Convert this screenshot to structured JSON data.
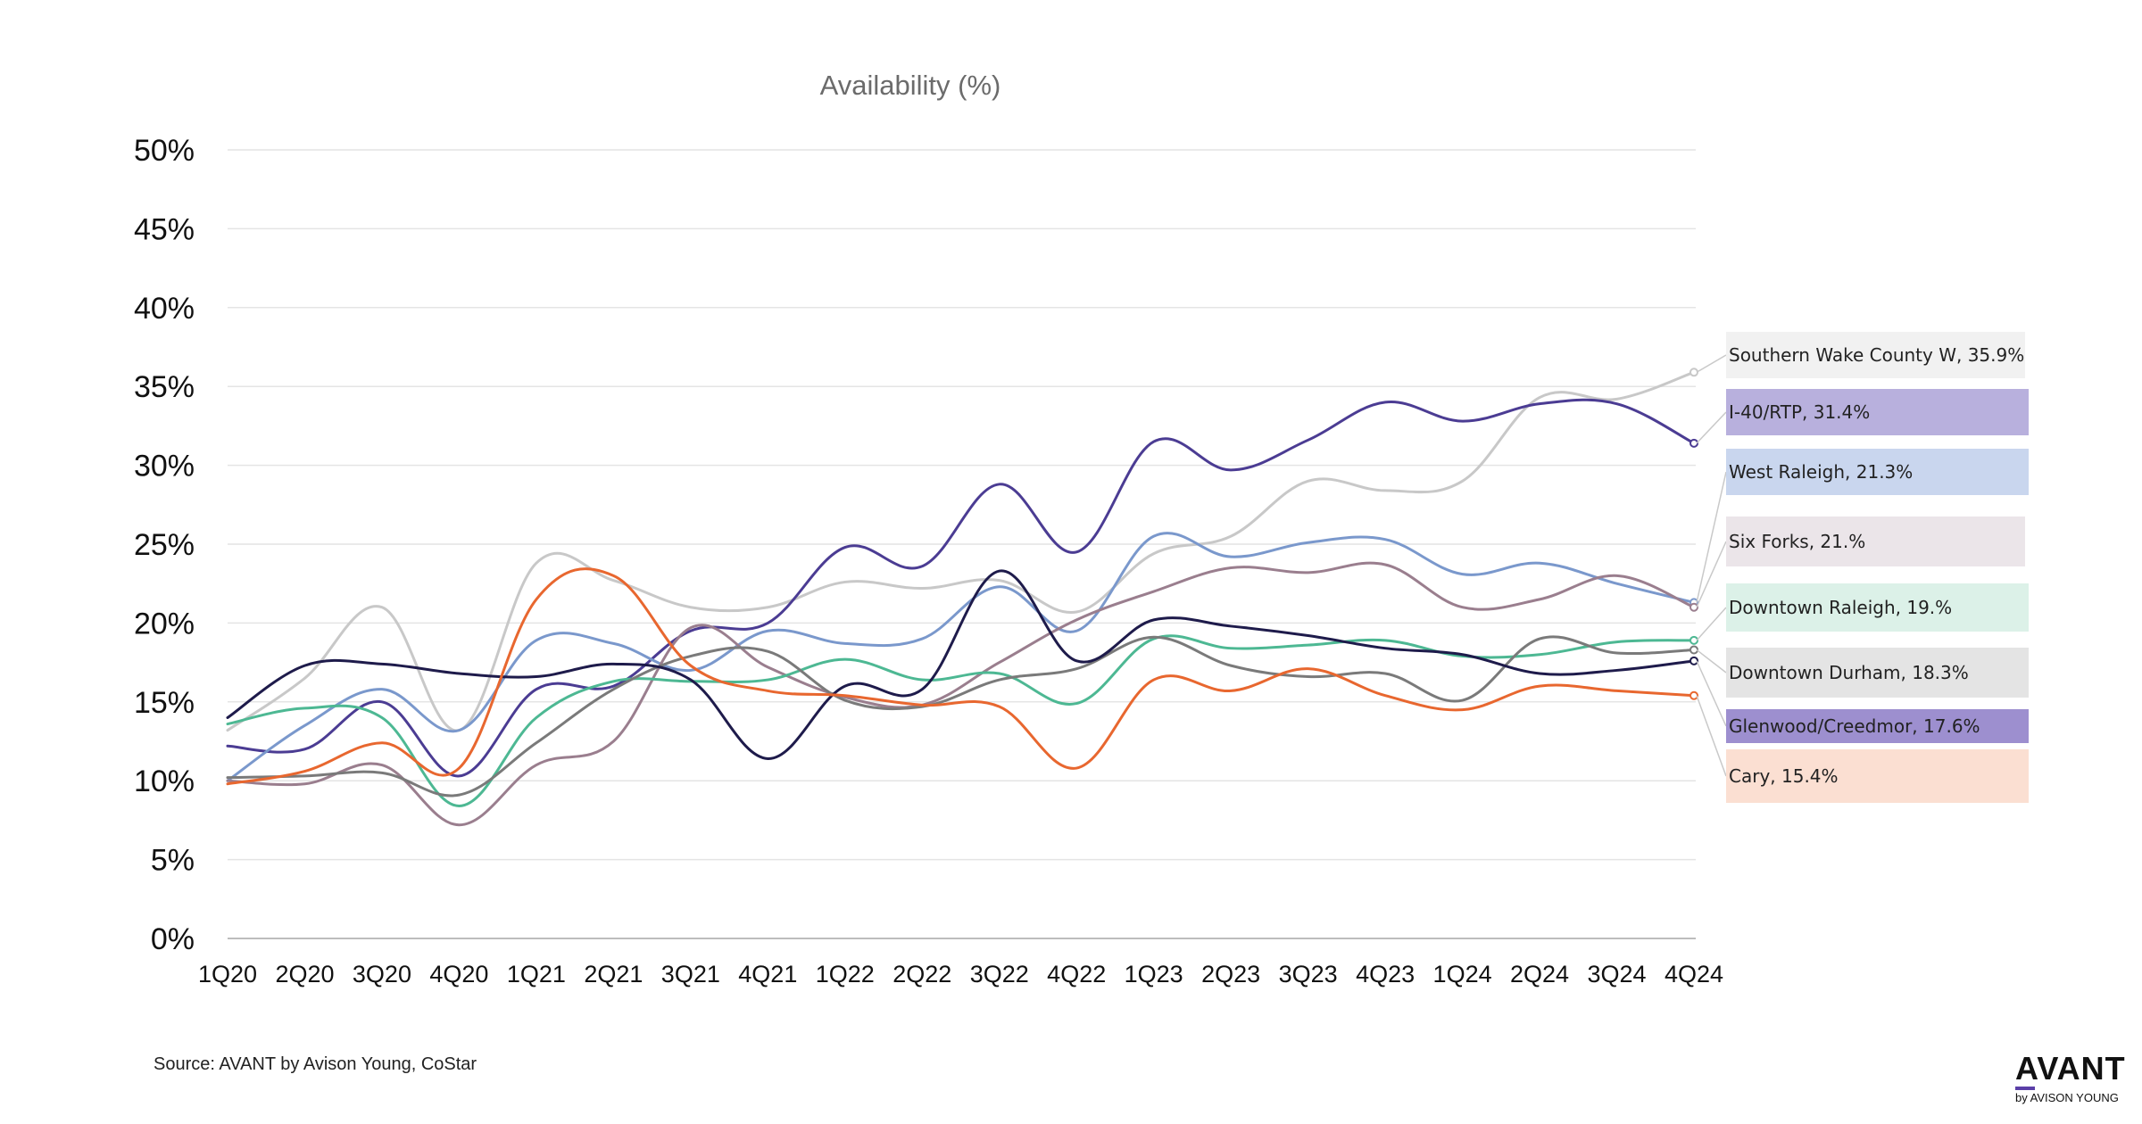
{
  "chart_data": {
    "type": "line",
    "title": "Availability (%)",
    "xlabel": "",
    "ylabel": "",
    "ylim": [
      0,
      50
    ],
    "yticks": [
      "0%",
      "5%",
      "10%",
      "15%",
      "20%",
      "25%",
      "30%",
      "35%",
      "40%",
      "45%",
      "50%"
    ],
    "grid": "horizontal",
    "legend_placement": "right, labels at line ends",
    "categories": [
      "1Q20",
      "2Q20",
      "3Q20",
      "4Q20",
      "1Q21",
      "2Q21",
      "3Q21",
      "4Q21",
      "1Q22",
      "2Q22",
      "3Q22",
      "4Q22",
      "1Q23",
      "2Q23",
      "3Q23",
      "4Q23",
      "1Q24",
      "2Q24",
      "3Q24",
      "4Q24"
    ],
    "series": [
      {
        "name": "Southern Wake County W",
        "label": "Southern Wake County W, 35.9%",
        "color": "#c8c8c8",
        "label_bg": "#f1f1f1",
        "values": [
          13.2,
          16.5,
          21.0,
          13.2,
          23.8,
          22.7,
          21.0,
          21.0,
          22.6,
          22.2,
          22.7,
          20.7,
          24.4,
          25.5,
          29.0,
          28.4,
          29.0,
          34.3,
          34.2,
          35.9
        ]
      },
      {
        "name": "I-40/RTP",
        "label": "I-40/RTP, 31.4%",
        "color": "#4b3c93",
        "label_bg": "#b8b0dd",
        "values": [
          12.2,
          12.0,
          15.0,
          10.3,
          15.8,
          16.0,
          19.5,
          20.0,
          24.8,
          23.6,
          28.8,
          24.5,
          31.5,
          29.7,
          31.6,
          34.0,
          32.8,
          33.9,
          33.9,
          31.4
        ]
      },
      {
        "name": "West Raleigh",
        "label": "West Raleigh, 21.3%",
        "color": "#7a98cc",
        "label_bg": "#c9d6ee",
        "values": [
          10.0,
          13.5,
          15.8,
          13.2,
          18.9,
          18.7,
          17.0,
          19.5,
          18.7,
          19.0,
          22.3,
          19.5,
          25.5,
          24.2,
          25.1,
          25.3,
          23.1,
          23.8,
          22.5,
          21.3
        ]
      },
      {
        "name": "Six Forks",
        "label": "Six Forks, 21.%",
        "color": "#9a7e8e",
        "label_bg": "#ebe5e9",
        "values": [
          10.0,
          9.8,
          11.0,
          7.2,
          11.0,
          12.5,
          19.7,
          17.2,
          15.3,
          14.8,
          17.5,
          20.2,
          22.0,
          23.5,
          23.2,
          23.7,
          21.0,
          21.5,
          23.0,
          21.0
        ]
      },
      {
        "name": "Downtown Raleigh",
        "label": "Downtown Raleigh, 19.%",
        "color": "#4db893",
        "label_bg": "#dcf1e8",
        "values": [
          13.6,
          14.6,
          14.0,
          8.4,
          14.0,
          16.3,
          16.3,
          16.4,
          17.7,
          16.4,
          16.8,
          14.9,
          19.0,
          18.4,
          18.6,
          18.9,
          17.9,
          18.0,
          18.8,
          18.9
        ]
      },
      {
        "name": "Downtown Durham",
        "label": "Downtown Durham, 18.3%",
        "color": "#7a7a7a",
        "label_bg": "#e4e4e4",
        "values": [
          10.2,
          10.3,
          10.5,
          9.1,
          12.4,
          15.8,
          17.9,
          18.2,
          15.1,
          14.7,
          16.4,
          17.1,
          19.1,
          17.3,
          16.6,
          16.8,
          15.1,
          19.0,
          18.1,
          18.3
        ]
      },
      {
        "name": "Glenwood/Creedmor",
        "label": "Glenwood/Creedmor, 17.6%",
        "color": "#1e1b4b",
        "label_bg": "#9d8fcf",
        "values": [
          14.0,
          17.3,
          17.4,
          16.8,
          16.6,
          17.4,
          16.4,
          11.4,
          16.0,
          15.8,
          23.3,
          17.6,
          20.2,
          19.8,
          19.2,
          18.4,
          18.0,
          16.8,
          17.0,
          17.6
        ]
      },
      {
        "name": "Cary",
        "label": "Cary, 15.4%",
        "color": "#e8672f",
        "label_bg": "#fbdfd2",
        "values": [
          9.8,
          10.6,
          12.4,
          10.8,
          21.5,
          23.0,
          17.3,
          15.7,
          15.4,
          14.8,
          14.7,
          10.8,
          16.4,
          15.7,
          17.1,
          15.4,
          14.5,
          16.0,
          15.7,
          15.4
        ]
      }
    ]
  },
  "footer": {
    "source": "Source: AVANT by Avison Young, CoStar"
  },
  "logo": {
    "name": "AVANT",
    "sub": "by AVISON YOUNG",
    "accent": "#5b3fa8"
  }
}
